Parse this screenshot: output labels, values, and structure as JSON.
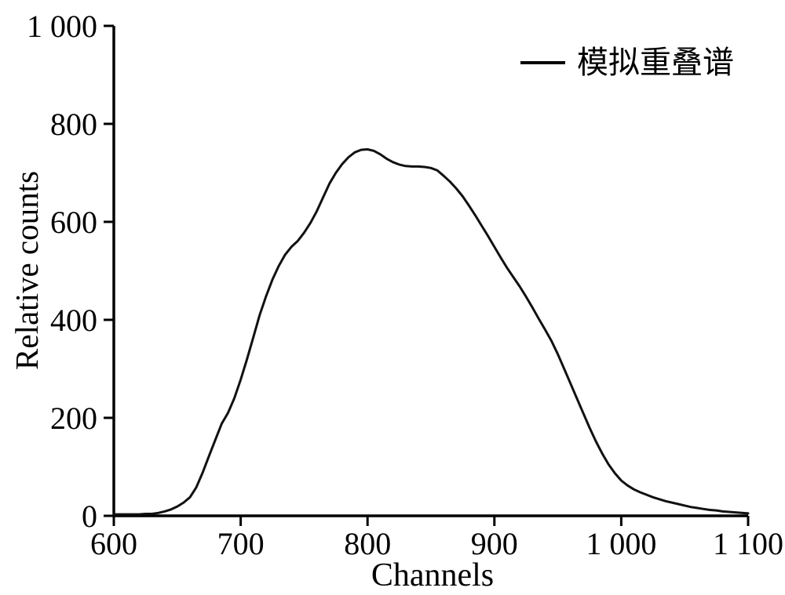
{
  "chart_data": {
    "type": "line",
    "title": "",
    "xlabel": "Channels",
    "ylabel": "Relative counts",
    "xlim": [
      600,
      1100
    ],
    "ylim": [
      0,
      1000
    ],
    "grid": false,
    "legend_position": "upper right",
    "axis_color": "#000000",
    "line_color": "#111111",
    "x_ticks": [
      600,
      700,
      800,
      900,
      1000,
      1100
    ],
    "x_tick_labels": [
      "600",
      "700",
      "800",
      "900",
      "1 000",
      "1 100"
    ],
    "y_ticks": [
      0,
      200,
      400,
      600,
      800,
      1000
    ],
    "y_tick_labels": [
      "0",
      "200",
      "400",
      "600",
      "800",
      "1 000"
    ],
    "series": [
      {
        "name": "模拟重叠谱",
        "x": [
          600,
          605,
          610,
          615,
          620,
          625,
          630,
          635,
          640,
          645,
          650,
          655,
          660,
          665,
          670,
          675,
          680,
          685,
          690,
          695,
          700,
          705,
          710,
          715,
          720,
          725,
          730,
          735,
          740,
          745,
          750,
          755,
          760,
          765,
          770,
          775,
          780,
          785,
          790,
          795,
          800,
          805,
          810,
          815,
          820,
          825,
          830,
          835,
          840,
          845,
          850,
          855,
          860,
          865,
          870,
          875,
          880,
          885,
          890,
          895,
          900,
          905,
          910,
          915,
          920,
          925,
          930,
          935,
          940,
          945,
          950,
          955,
          960,
          965,
          970,
          975,
          980,
          985,
          990,
          995,
          1000,
          1005,
          1010,
          1015,
          1020,
          1025,
          1030,
          1035,
          1040,
          1045,
          1050,
          1055,
          1060,
          1065,
          1070,
          1075,
          1080,
          1085,
          1090,
          1095,
          1100
        ],
        "values": [
          3,
          3,
          3,
          3,
          3,
          4,
          4,
          6,
          9,
          13,
          19,
          27,
          38,
          58,
          88,
          122,
          155,
          188,
          210,
          240,
          278,
          320,
          365,
          410,
          448,
          482,
          510,
          533,
          549,
          561,
          578,
          598,
          622,
          650,
          678,
          700,
          718,
          732,
          742,
          747,
          748,
          745,
          738,
          729,
          722,
          717,
          714,
          713,
          713,
          712,
          710,
          705,
          694,
          682,
          668,
          652,
          633,
          613,
          592,
          571,
          549,
          527,
          506,
          487,
          468,
          447,
          425,
          402,
          380,
          357,
          330,
          300,
          270,
          240,
          210,
          180,
          152,
          127,
          105,
          87,
          72,
          62,
          54,
          48,
          43,
          38,
          34,
          30,
          27,
          24,
          21,
          18,
          16,
          14,
          12,
          11,
          9,
          8,
          7,
          6,
          5
        ]
      }
    ]
  }
}
